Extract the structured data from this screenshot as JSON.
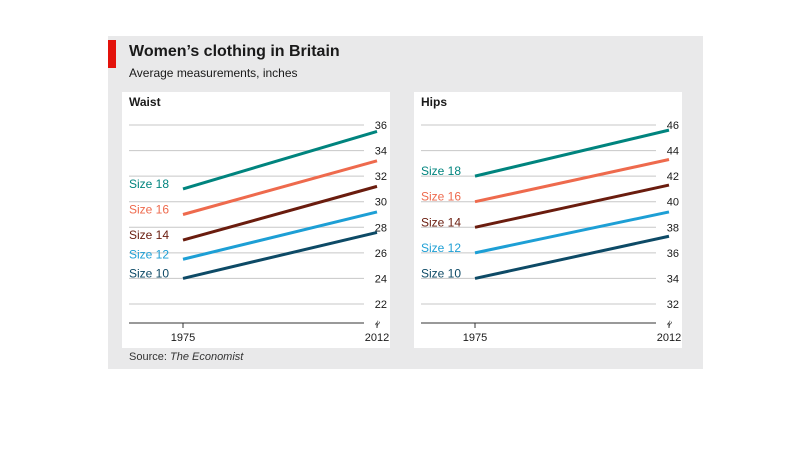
{
  "header": {
    "title": "Women’s clothing in Britain",
    "subtitle": "Average measurements, inches"
  },
  "footer": {
    "source_label": "Source:",
    "source_publication": "The Economist"
  },
  "colors": {
    "accent": "#e3120b",
    "Size 18": "#00847e",
    "Size 16": "#ee6a4d",
    "Size 14": "#6a1c0e",
    "Size 12": "#1d9fd5",
    "Size 10": "#0d4a66"
  },
  "chart_data": [
    {
      "type": "line",
      "title": "Waist",
      "x": [
        1975,
        2012
      ],
      "x_tick_labels": [
        "1975",
        "2012"
      ],
      "ylim": [
        22,
        36
      ],
      "y_ticks": [
        22,
        24,
        26,
        28,
        30,
        32,
        34,
        36
      ],
      "y_tick_labels": [
        "22",
        "24",
        "26",
        "28",
        "30",
        "32",
        "34",
        "36"
      ],
      "grid": true,
      "axis_break": "≈",
      "series": [
        {
          "name": "Size 18",
          "values": [
            31.0,
            35.5
          ]
        },
        {
          "name": "Size 16",
          "values": [
            29.0,
            33.2
          ]
        },
        {
          "name": "Size 14",
          "values": [
            27.0,
            31.2
          ]
        },
        {
          "name": "Size 12",
          "values": [
            25.5,
            29.2
          ]
        },
        {
          "name": "Size 10",
          "values": [
            24.0,
            27.6
          ]
        }
      ]
    },
    {
      "type": "line",
      "title": "Hips",
      "x": [
        1975,
        2012
      ],
      "x_tick_labels": [
        "1975",
        "2012"
      ],
      "ylim": [
        32,
        46
      ],
      "y_ticks": [
        32,
        34,
        36,
        38,
        40,
        42,
        44,
        46
      ],
      "y_tick_labels": [
        "32",
        "34",
        "36",
        "38",
        "40",
        "42",
        "44",
        "46"
      ],
      "grid": true,
      "axis_break": "≈",
      "series": [
        {
          "name": "Size 18",
          "values": [
            42.0,
            45.6
          ]
        },
        {
          "name": "Size 16",
          "values": [
            40.0,
            43.3
          ]
        },
        {
          "name": "Size 14",
          "values": [
            38.0,
            41.3
          ]
        },
        {
          "name": "Size 12",
          "values": [
            36.0,
            39.2
          ]
        },
        {
          "name": "Size 10",
          "values": [
            34.0,
            37.3
          ]
        }
      ]
    }
  ]
}
